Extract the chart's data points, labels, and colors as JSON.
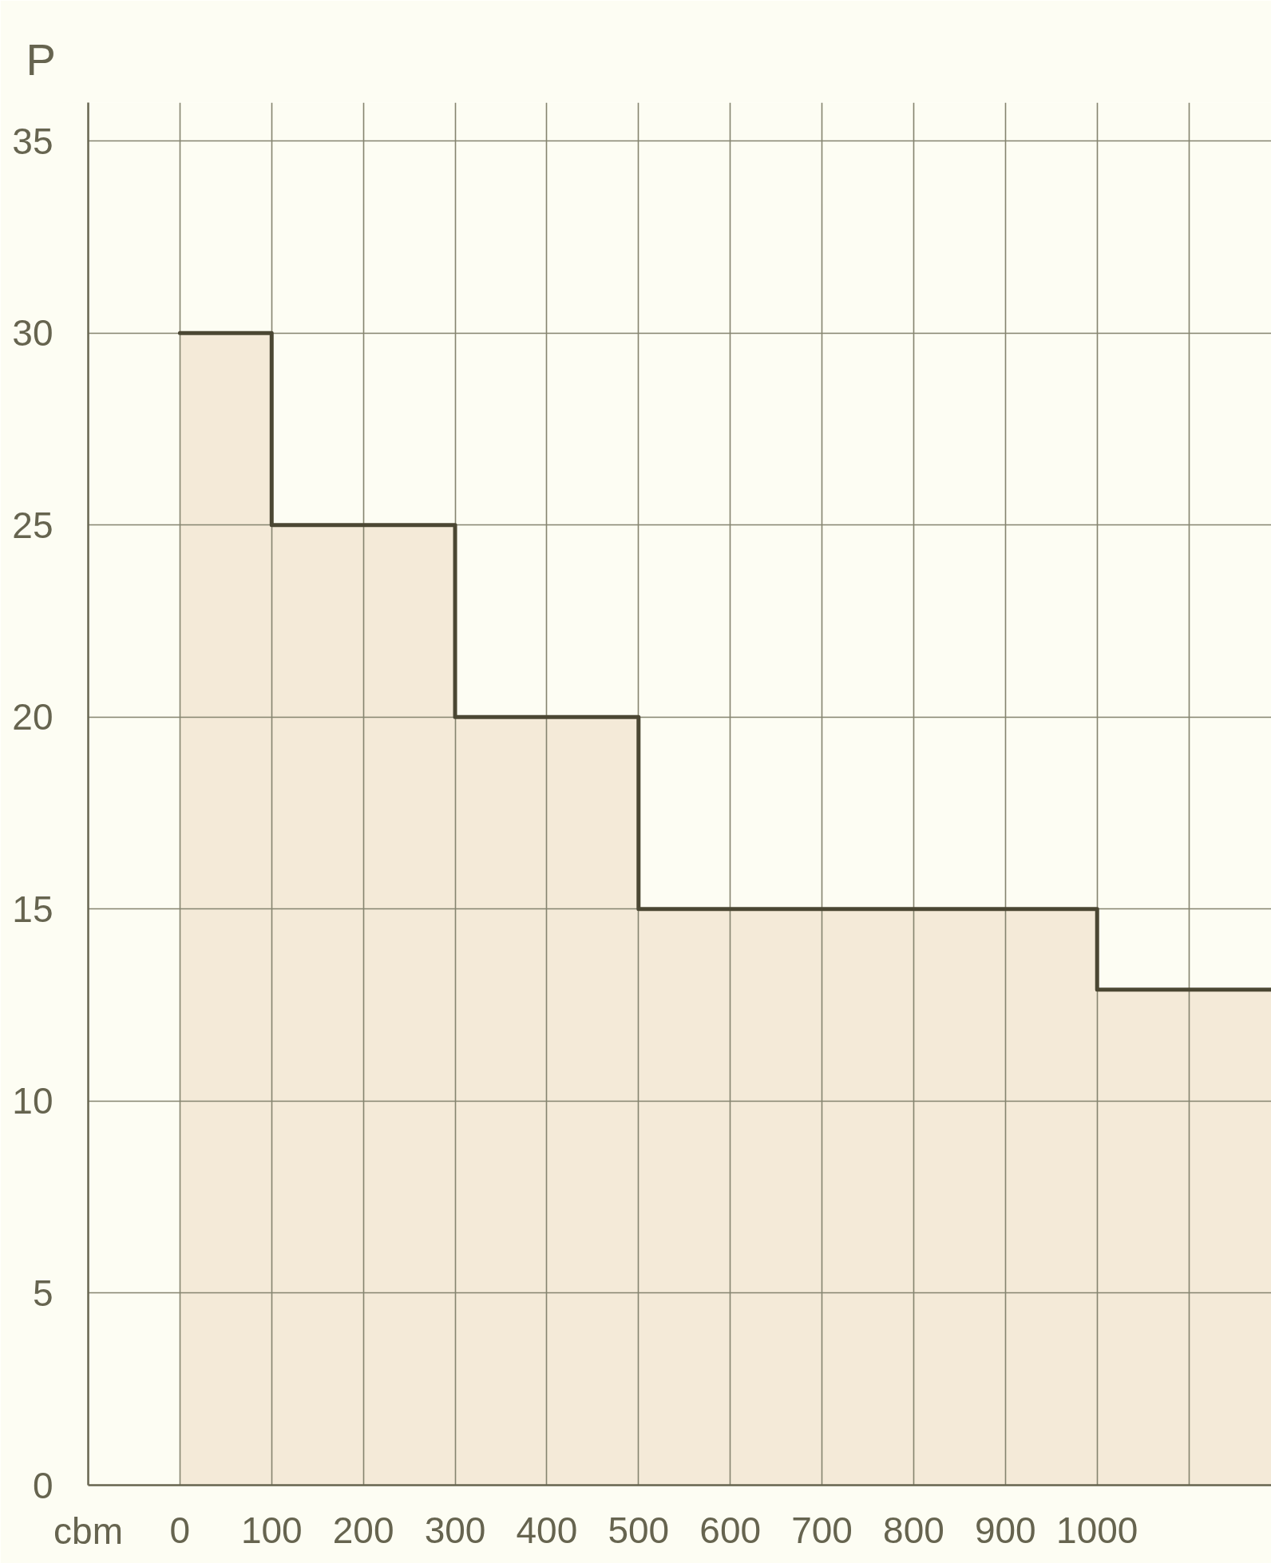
{
  "chart_data": {
    "type": "area",
    "xlabel": "cbm",
    "ylabel": "P",
    "xlim": [
      -100,
      1190
    ],
    "ylim": [
      0,
      36
    ],
    "xticks": [
      0,
      100,
      200,
      300,
      400,
      500,
      600,
      700,
      800,
      900,
      1000,
      {
        "value": 1100,
        "label": null
      }
    ],
    "yticks": [
      0,
      5,
      10,
      15,
      20,
      25,
      30,
      35
    ],
    "grid": true,
    "series": [
      {
        "color": "#f4ead8",
        "x": [
          0,
          100,
          100,
          300,
          300,
          500,
          500,
          1000,
          1000,
          1190
        ],
        "values": [
          30,
          30,
          25,
          25,
          20,
          20,
          15,
          15,
          12.9,
          12.9
        ]
      }
    ]
  }
}
